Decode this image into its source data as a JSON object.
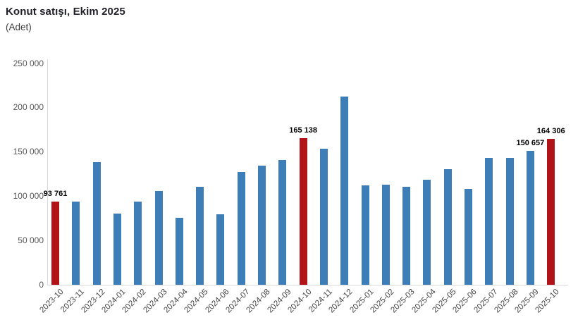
{
  "header": {
    "title": "Konut satışı, Ekim 2025",
    "subtitle": "(Adet)"
  },
  "colors": {
    "bar": "#3d7eb9",
    "highlight": "#b01419",
    "axis_line": "#d9d9d9",
    "tick_text": "#595959",
    "data_label_text": "#000000"
  },
  "chart_data": {
    "type": "bar",
    "title": "Konut satışı, Ekim 2025",
    "ylabel": "(Adet)",
    "xlabel": "",
    "ylim": [
      0,
      250000
    ],
    "grid": false,
    "legend": "none",
    "yticks": [
      {
        "value": 0,
        "label": "0"
      },
      {
        "value": 50000,
        "label": "50 000"
      },
      {
        "value": 100000,
        "label": "100 000"
      },
      {
        "value": 150000,
        "label": "150 000"
      },
      {
        "value": 200000,
        "label": "200 000"
      },
      {
        "value": 250000,
        "label": "250 000"
      }
    ],
    "categories": [
      "2023-10",
      "2023-11",
      "2023-12",
      "2024-01",
      "2024-02",
      "2024-03",
      "2024-04",
      "2024-05",
      "2024-06",
      "2024-07",
      "2024-08",
      "2024-09",
      "2024-10",
      "2024-11",
      "2024-12",
      "2025-01",
      "2025-02",
      "2025-03",
      "2025-04",
      "2025-05",
      "2025-06",
      "2025-07",
      "2025-08",
      "2025-09",
      "2025-10"
    ],
    "values": [
      93761,
      93911,
      138577,
      80308,
      93902,
      105476,
      75569,
      110588,
      79313,
      127088,
      134155,
      140919,
      165138,
      153625,
      212637,
      112173,
      112818,
      110795,
      118359,
      130025,
      107723,
      142858,
      143319,
      150657,
      164306
    ],
    "highlight_indices": [
      0,
      12,
      24
    ],
    "data_labels": {
      "2023-10": "93 761",
      "2024-10": "165 138",
      "2025-09": "150 657",
      "2025-10": "164 306"
    }
  }
}
